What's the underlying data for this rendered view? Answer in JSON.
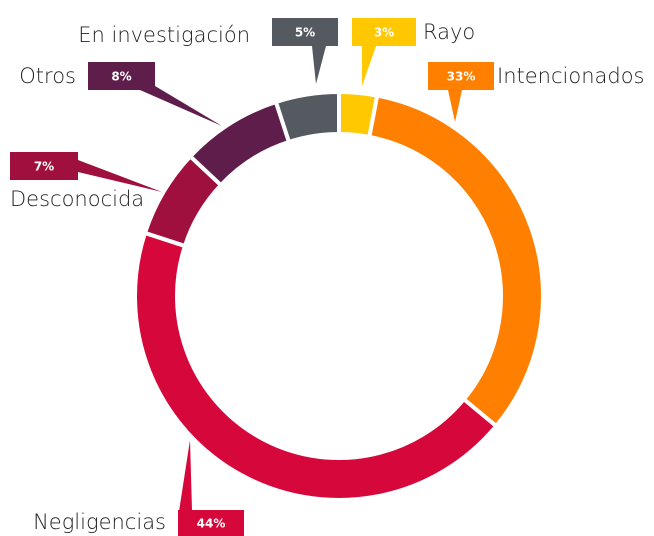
{
  "chart_data": {
    "type": "donut",
    "categories": [
      "Rayo",
      "Intencionados",
      "Negligencias",
      "Desconocida",
      "Otros",
      "En investigación"
    ],
    "values": [
      3,
      33,
      44,
      7,
      8,
      5
    ],
    "value_labels": [
      "3%",
      "33%",
      "44%",
      "7%",
      "8%",
      "5%"
    ],
    "colors": [
      "#ffc800",
      "#ff7f00",
      "#d6083b",
      "#a0103f",
      "#5e1d4a",
      "#545a60"
    ]
  }
}
